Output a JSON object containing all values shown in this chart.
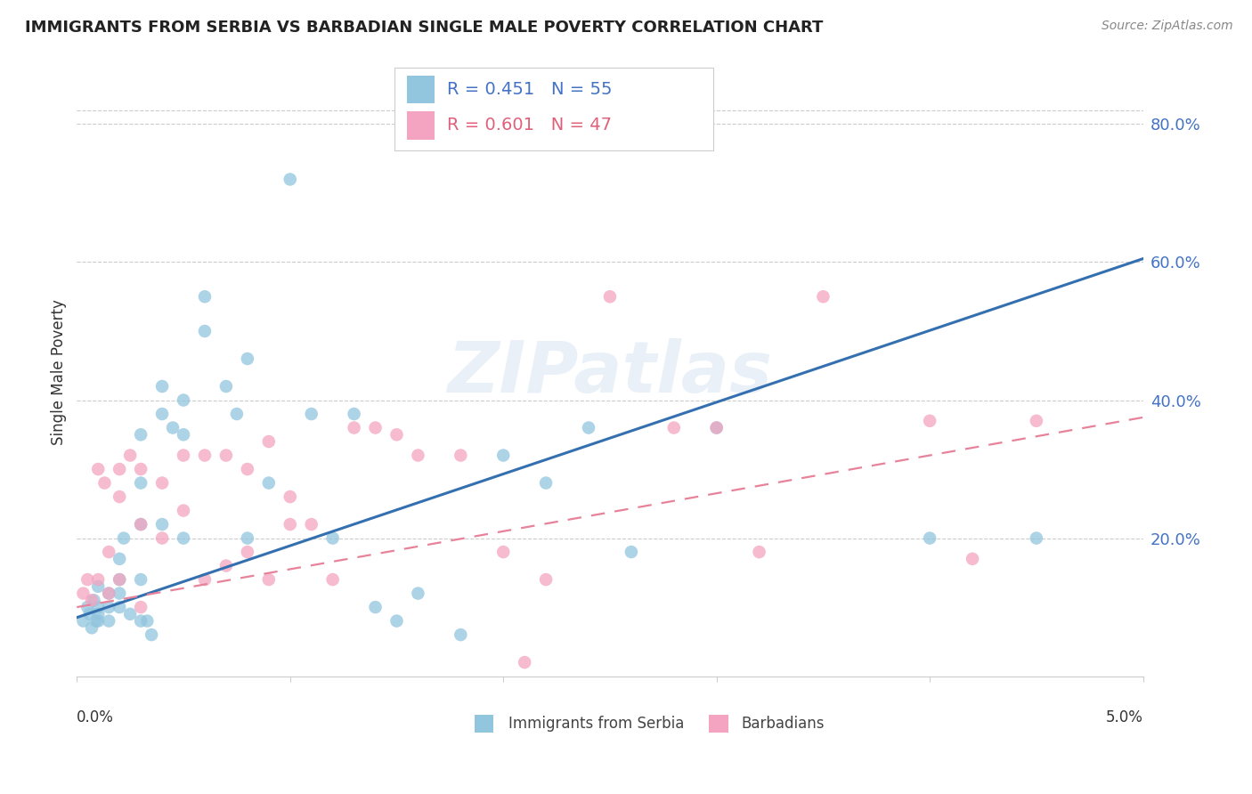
{
  "title": "IMMIGRANTS FROM SERBIA VS BARBADIAN SINGLE MALE POVERTY CORRELATION CHART",
  "source": "Source: ZipAtlas.com",
  "ylabel": "Single Male Poverty",
  "y_ticks": [
    0.0,
    0.2,
    0.4,
    0.6,
    0.8
  ],
  "y_tick_labels": [
    "",
    "20.0%",
    "40.0%",
    "60.0%",
    "80.0%"
  ],
  "x_lim": [
    0.0,
    0.05
  ],
  "y_lim": [
    0.0,
    0.88
  ],
  "legend1_R": "0.451",
  "legend1_N": "55",
  "legend2_R": "0.601",
  "legend2_N": "47",
  "color_serbia": "#92c5de",
  "color_barbadian": "#f4a4c0",
  "watermark_color": "#b8cfe8",
  "serbia_scatter_x": [
    0.0003,
    0.0005,
    0.0006,
    0.0007,
    0.0008,
    0.0009,
    0.001,
    0.001,
    0.001,
    0.001,
    0.0015,
    0.0015,
    0.0015,
    0.002,
    0.002,
    0.002,
    0.002,
    0.0022,
    0.0025,
    0.003,
    0.003,
    0.003,
    0.003,
    0.003,
    0.0033,
    0.0035,
    0.004,
    0.004,
    0.004,
    0.0045,
    0.005,
    0.005,
    0.005,
    0.006,
    0.006,
    0.007,
    0.0075,
    0.008,
    0.008,
    0.009,
    0.01,
    0.011,
    0.012,
    0.013,
    0.014,
    0.015,
    0.016,
    0.018,
    0.02,
    0.022,
    0.024,
    0.026,
    0.03,
    0.04,
    0.045
  ],
  "serbia_scatter_y": [
    0.08,
    0.1,
    0.09,
    0.07,
    0.11,
    0.08,
    0.13,
    0.1,
    0.09,
    0.08,
    0.12,
    0.1,
    0.08,
    0.17,
    0.14,
    0.12,
    0.1,
    0.2,
    0.09,
    0.35,
    0.28,
    0.22,
    0.14,
    0.08,
    0.08,
    0.06,
    0.42,
    0.38,
    0.22,
    0.36,
    0.4,
    0.35,
    0.2,
    0.55,
    0.5,
    0.42,
    0.38,
    0.46,
    0.2,
    0.28,
    0.72,
    0.38,
    0.2,
    0.38,
    0.1,
    0.08,
    0.12,
    0.06,
    0.32,
    0.28,
    0.36,
    0.18,
    0.36,
    0.2,
    0.2
  ],
  "barbadian_scatter_x": [
    0.0003,
    0.0005,
    0.0007,
    0.001,
    0.001,
    0.0013,
    0.0015,
    0.0015,
    0.002,
    0.002,
    0.002,
    0.0025,
    0.003,
    0.003,
    0.003,
    0.004,
    0.004,
    0.005,
    0.005,
    0.006,
    0.006,
    0.007,
    0.007,
    0.008,
    0.008,
    0.009,
    0.009,
    0.01,
    0.01,
    0.011,
    0.012,
    0.013,
    0.014,
    0.015,
    0.016,
    0.018,
    0.02,
    0.021,
    0.022,
    0.025,
    0.028,
    0.03,
    0.032,
    0.035,
    0.04,
    0.042,
    0.045
  ],
  "barbadian_scatter_y": [
    0.12,
    0.14,
    0.11,
    0.3,
    0.14,
    0.28,
    0.18,
    0.12,
    0.3,
    0.26,
    0.14,
    0.32,
    0.3,
    0.22,
    0.1,
    0.28,
    0.2,
    0.32,
    0.24,
    0.32,
    0.14,
    0.32,
    0.16,
    0.3,
    0.18,
    0.34,
    0.14,
    0.26,
    0.22,
    0.22,
    0.14,
    0.36,
    0.36,
    0.35,
    0.32,
    0.32,
    0.18,
    0.02,
    0.14,
    0.55,
    0.36,
    0.36,
    0.18,
    0.55,
    0.37,
    0.17,
    0.37
  ],
  "serbia_line_x": [
    0.0,
    0.05
  ],
  "serbia_line_y": [
    0.085,
    0.605
  ],
  "barbadian_line_x": [
    0.0,
    0.05
  ],
  "barbadian_line_y": [
    0.1,
    0.375
  ]
}
